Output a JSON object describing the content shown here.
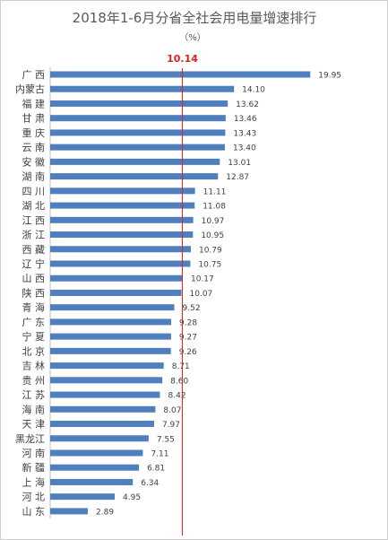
{
  "chart_data": {
    "type": "bar",
    "orientation": "horizontal",
    "title": "2018年1-6月分省全社会用电量增速排行",
    "subtitle": "（%）",
    "reference_line": {
      "value": 10.14,
      "label": "10.14",
      "color": "#e0201c"
    },
    "bar_color": "#4f7fbd",
    "xlim": [
      0,
      21
    ],
    "grid": false,
    "legend": "none",
    "categories": [
      "广 西",
      "内蒙古",
      "福 建",
      "甘 肃",
      "重 庆",
      "云 南",
      "安 徽",
      "湖 南",
      "四 川",
      "湖 北",
      "江 西",
      "浙 江",
      "西 藏",
      "辽 宁",
      "山 西",
      "陕 西",
      "青 海",
      "广 东",
      "宁 夏",
      "北 京",
      "吉 林",
      "贵 州",
      "江 苏",
      "海 南",
      "天 津",
      "黑龙江",
      "河 南",
      "新 疆",
      "上 海",
      "河 北",
      "山 东"
    ],
    "values": [
      19.95,
      14.1,
      13.62,
      13.46,
      13.43,
      13.4,
      13.01,
      12.87,
      11.11,
      11.08,
      10.97,
      10.95,
      10.79,
      10.75,
      10.17,
      10.07,
      9.52,
      9.28,
      9.27,
      9.26,
      8.71,
      8.6,
      8.42,
      8.07,
      7.97,
      7.55,
      7.11,
      6.81,
      6.34,
      4.95,
      2.89
    ],
    "value_labels": [
      "19.95",
      "14.10",
      "13.62",
      "13.46",
      "13.43",
      "13.40",
      "13.01",
      "12.87",
      "11.11",
      "11.08",
      "10.97",
      "10.95",
      "10.79",
      "10.75",
      "10.17",
      "10.07",
      "9.52",
      "9.28",
      "9.27",
      "9.26",
      "8.71",
      "8.60",
      "8.42",
      "8.07",
      "7.97",
      "7.55",
      "7.11",
      "6.81",
      "6.34",
      "4.95",
      "2.89"
    ]
  }
}
